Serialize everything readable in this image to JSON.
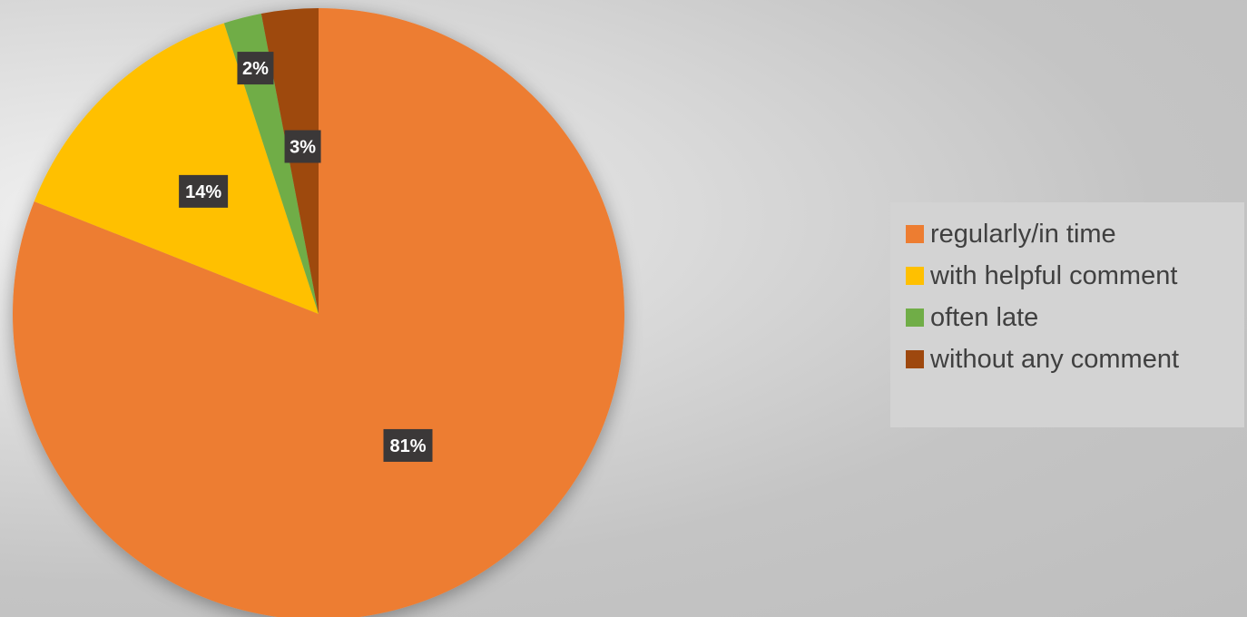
{
  "chart_data": {
    "type": "pie",
    "categories": [
      "regularly/in time",
      "with helpful comment",
      "often late",
      "without any comment"
    ],
    "values": [
      81,
      14,
      2,
      3
    ],
    "labels": [
      "81%",
      "14%",
      "2%",
      "3%"
    ],
    "colors": [
      "#ED7D31",
      "#FFC000",
      "#70AD47",
      "#9E480E"
    ],
    "label_style": {
      "background": "#3b3838",
      "text": "#ffffff"
    },
    "legend_position": "right"
  }
}
